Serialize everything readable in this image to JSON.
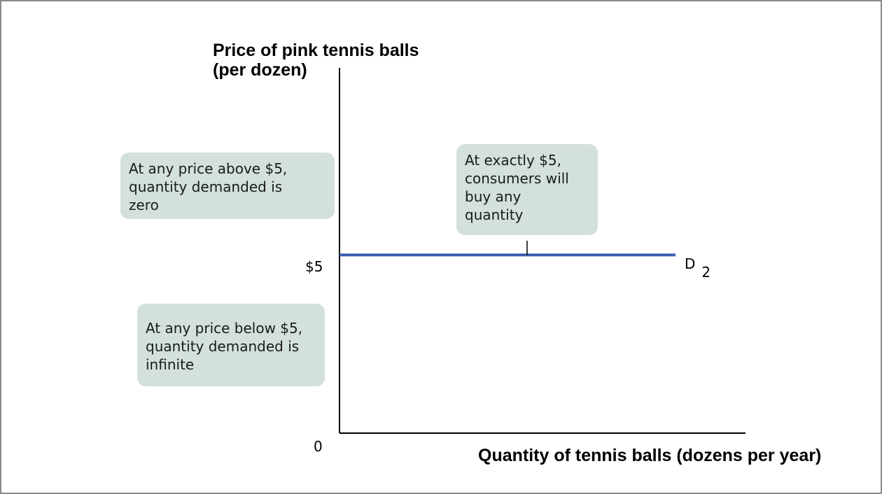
{
  "chart_data": {
    "type": "line",
    "title": "",
    "xlabel": "Quantity of tennis balls (dozens per year)",
    "ylabel_line1": "Price of pink tennis balls",
    "ylabel_line2": "(per dozen)",
    "origin_label": "0",
    "yticks": [
      {
        "value": 5,
        "label": "$5"
      }
    ],
    "ylim": [
      0,
      10.25
    ],
    "series": [
      {
        "name_main": "D",
        "name_sub": "2",
        "color": "#3a5dae",
        "x": [
          0,
          1
        ],
        "y": [
          5,
          5
        ]
      }
    ],
    "annotations": {
      "above": [
        "At any price above $5,",
        "quantity demanded is",
        "zero"
      ],
      "exact": [
        "At exactly $5,",
        "consumers will",
        "buy any",
        "quantity"
      ],
      "below": [
        "At any price below $5,",
        "quantity demanded is",
        "infinite"
      ]
    },
    "grid": false
  }
}
